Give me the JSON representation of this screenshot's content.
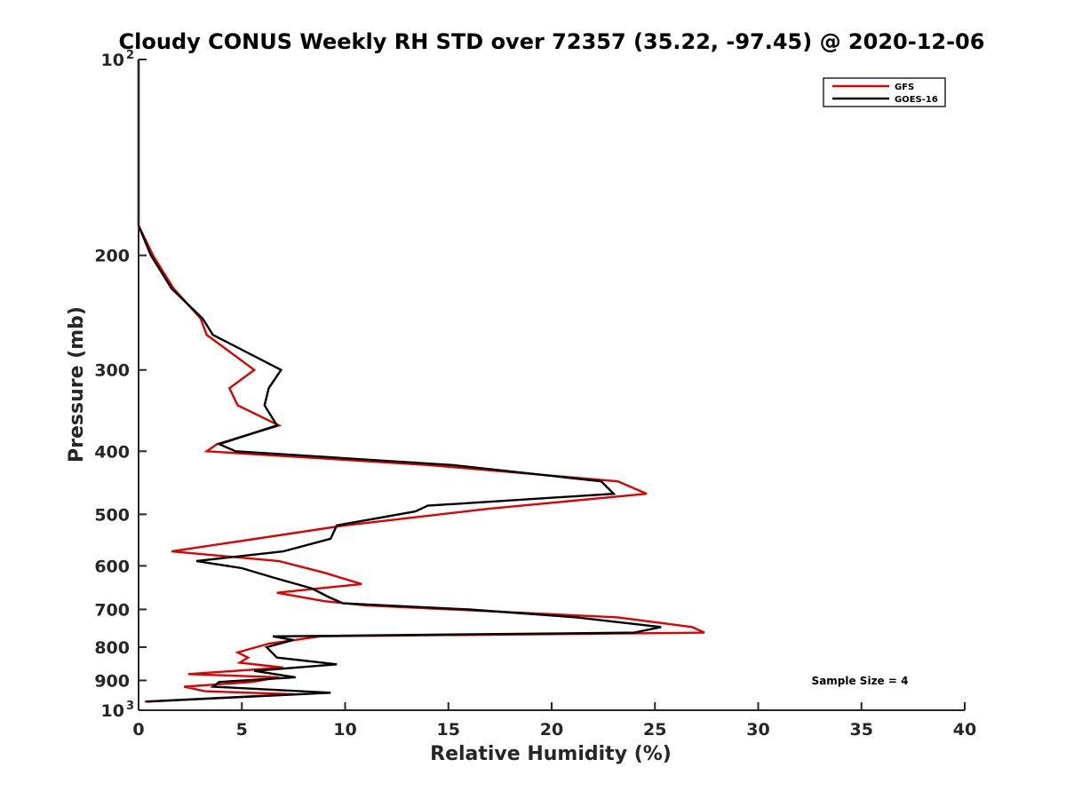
{
  "chart_data": {
    "type": "line",
    "title": "Cloudy CONUS Weekly RH STD over 72357 (35.22, -97.45) @ 2020-12-06",
    "xlabel": "Relative Humidity (%)",
    "ylabel": "Pressure (mb)",
    "xlim": [
      0,
      40
    ],
    "ylim": [
      100,
      1000
    ],
    "y_scale": "log",
    "y_reversed": true,
    "x_ticks": [
      "0",
      "5",
      "10",
      "15",
      "20",
      "25",
      "30",
      "35",
      "40"
    ],
    "y_ticks": [
      {
        "value": 100,
        "label": "10",
        "exp": "2"
      },
      {
        "value": 200,
        "label": "200",
        "exp": ""
      },
      {
        "value": 300,
        "label": "300",
        "exp": ""
      },
      {
        "value": 400,
        "label": "400",
        "exp": ""
      },
      {
        "value": 500,
        "label": "500",
        "exp": ""
      },
      {
        "value": 600,
        "label": "600",
        "exp": ""
      },
      {
        "value": 700,
        "label": "700",
        "exp": ""
      },
      {
        "value": 800,
        "label": "800",
        "exp": ""
      },
      {
        "value": 900,
        "label": "900",
        "exp": ""
      },
      {
        "value": 1000,
        "label": "10",
        "exp": "3"
      }
    ],
    "legend_position": "top-right",
    "grid": false,
    "annotation": "Sample Size = 4",
    "series": [
      {
        "name": "GFS",
        "color": "#e00000",
        "points": [
          [
            0,
            100
          ],
          [
            0,
            130
          ],
          [
            0,
            180
          ],
          [
            0.7,
            200
          ],
          [
            1.7,
            225
          ],
          [
            3.0,
            250
          ],
          [
            3.3,
            265
          ],
          [
            5.6,
            300
          ],
          [
            4.4,
            320
          ],
          [
            4.8,
            340
          ],
          [
            6.8,
            365
          ],
          [
            3.8,
            390
          ],
          [
            3.3,
            400
          ],
          [
            14.0,
            420
          ],
          [
            23.2,
            445
          ],
          [
            24.6,
            465
          ],
          [
            17.0,
            490
          ],
          [
            10.0,
            520
          ],
          [
            1.6,
            570
          ],
          [
            6.8,
            590
          ],
          [
            9.0,
            615
          ],
          [
            10.8,
            640
          ],
          [
            6.7,
            660
          ],
          [
            9.0,
            680
          ],
          [
            11.0,
            690
          ],
          [
            23.2,
            720
          ],
          [
            26.8,
            745
          ],
          [
            27.4,
            760
          ],
          [
            8.8,
            770
          ],
          [
            6.3,
            790
          ],
          [
            4.8,
            815
          ],
          [
            5.3,
            830
          ],
          [
            4.9,
            845
          ],
          [
            7.0,
            860
          ],
          [
            2.4,
            880
          ],
          [
            6.8,
            890
          ],
          [
            5.5,
            905
          ],
          [
            2.2,
            920
          ],
          [
            3.2,
            935
          ],
          [
            7.5,
            945
          ],
          [
            0.3,
            970
          ]
        ]
      },
      {
        "name": "GOES-16",
        "color": "#000000",
        "points": [
          [
            0,
            100
          ],
          [
            0,
            130
          ],
          [
            0,
            180
          ],
          [
            0.6,
            200
          ],
          [
            1.6,
            225
          ],
          [
            3.1,
            250
          ],
          [
            3.6,
            265
          ],
          [
            6.9,
            300
          ],
          [
            6.3,
            320
          ],
          [
            6.1,
            340
          ],
          [
            6.7,
            365
          ],
          [
            3.9,
            390
          ],
          [
            4.7,
            400
          ],
          [
            15.2,
            420
          ],
          [
            22.4,
            445
          ],
          [
            23.0,
            465
          ],
          [
            14.0,
            485
          ],
          [
            13.4,
            495
          ],
          [
            9.6,
            520
          ],
          [
            9.3,
            545
          ],
          [
            7.0,
            570
          ],
          [
            2.8,
            590
          ],
          [
            5.0,
            605
          ],
          [
            6.5,
            625
          ],
          [
            8.4,
            650
          ],
          [
            9.2,
            670
          ],
          [
            9.9,
            685
          ],
          [
            16.0,
            700
          ],
          [
            21.2,
            720
          ],
          [
            25.3,
            745
          ],
          [
            24.0,
            760
          ],
          [
            6.5,
            770
          ],
          [
            7.5,
            780
          ],
          [
            6.2,
            800
          ],
          [
            6.7,
            830
          ],
          [
            9.6,
            850
          ],
          [
            5.6,
            870
          ],
          [
            7.6,
            890
          ],
          [
            3.9,
            905
          ],
          [
            3.6,
            920
          ],
          [
            9.3,
            940
          ],
          [
            0.4,
            970
          ]
        ]
      }
    ]
  }
}
